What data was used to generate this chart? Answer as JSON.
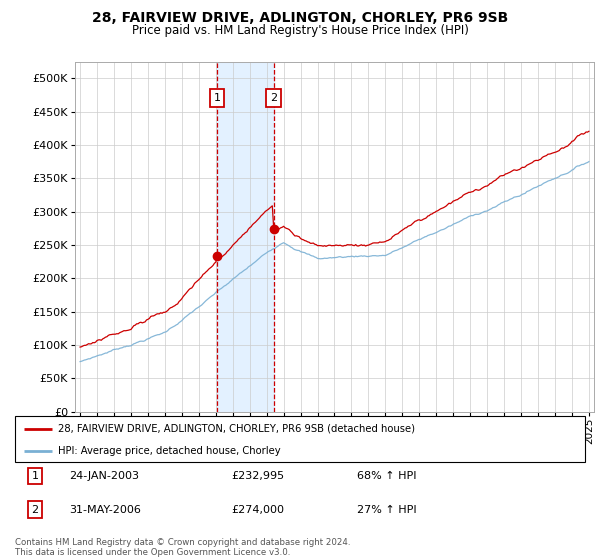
{
  "title": "28, FAIRVIEW DRIVE, ADLINGTON, CHORLEY, PR6 9SB",
  "subtitle": "Price paid vs. HM Land Registry's House Price Index (HPI)",
  "legend_line1": "28, FAIRVIEW DRIVE, ADLINGTON, CHORLEY, PR6 9SB (detached house)",
  "legend_line2": "HPI: Average price, detached house, Chorley",
  "sale1_date": "24-JAN-2003",
  "sale1_price": 232995,
  "sale1_label": "£232,995",
  "sale1_hpi": "68% ↑ HPI",
  "sale2_date": "31-MAY-2006",
  "sale2_price": 274000,
  "sale2_label": "£274,000",
  "sale2_hpi": "27% ↑ HPI",
  "footnote": "Contains HM Land Registry data © Crown copyright and database right 2024.\nThis data is licensed under the Open Government Licence v3.0.",
  "hpi_color": "#7ab0d4",
  "price_color": "#cc0000",
  "shade_color": "#ddeeff",
  "ylim_min": 0,
  "ylim_max": 525000,
  "yticks": [
    0,
    50000,
    100000,
    150000,
    200000,
    250000,
    300000,
    350000,
    400000,
    450000,
    500000
  ],
  "sale1_x": 2003.07,
  "sale2_x": 2006.42,
  "xmin": 1994.7,
  "xmax": 2025.3
}
